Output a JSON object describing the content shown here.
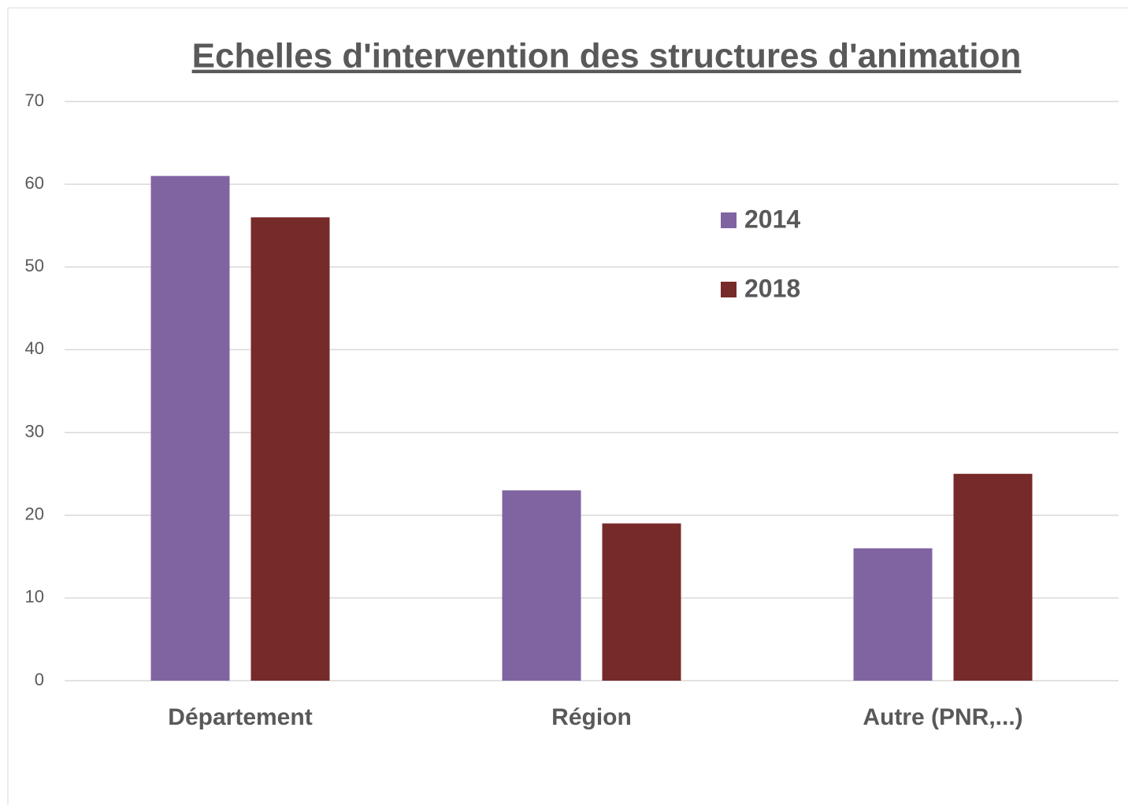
{
  "chart_data": {
    "type": "bar",
    "title": "Echelles d'intervention des structures d'animation",
    "categories": [
      "Département",
      "Région",
      "Autre (PNR,...)"
    ],
    "series": [
      {
        "name": "2014",
        "color": "#8064a2",
        "values": [
          61,
          23,
          16
        ]
      },
      {
        "name": "2018",
        "color": "#772a2a",
        "values": [
          56,
          19,
          25
        ]
      }
    ],
    "ylim": [
      0,
      70
    ],
    "yticks": [
      0,
      10,
      20,
      30,
      40,
      50,
      60,
      70
    ],
    "grid": true,
    "legend": "upper center"
  }
}
